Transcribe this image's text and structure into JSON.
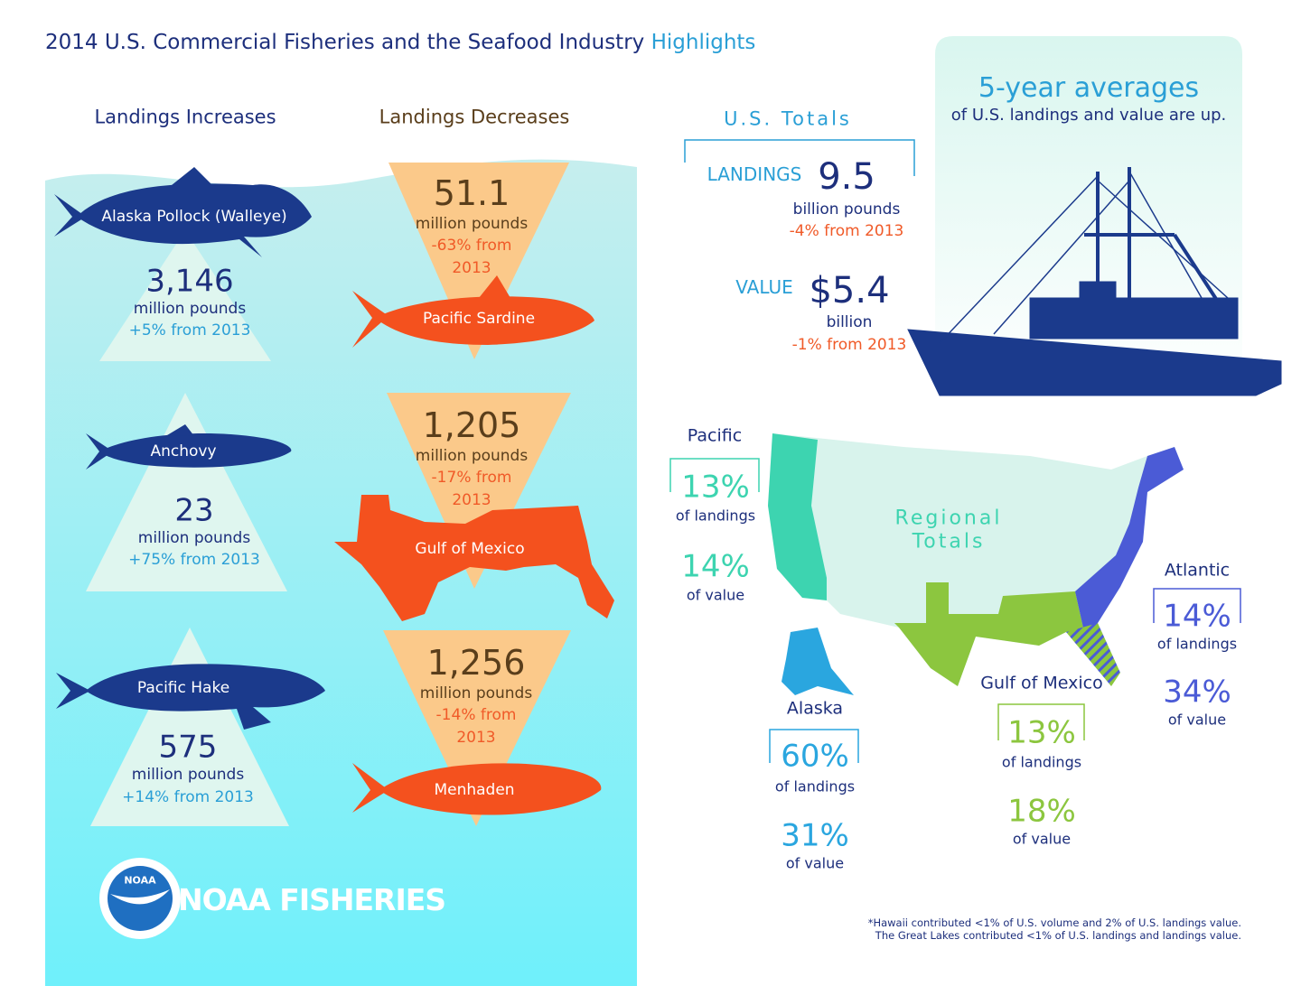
{
  "title": {
    "main": "2014 U.S. Commercial Fisheries and the Seafood Industry",
    "highlight": "Highlights"
  },
  "increases": {
    "heading": "Landings Increases",
    "items": [
      {
        "species": "Alaska  Pollock (Walleye)",
        "amount": "3,146",
        "unit": "million pounds",
        "change": "+5% from 2013"
      },
      {
        "species": "Anchovy",
        "amount": "23",
        "unit": "million pounds",
        "change": "+75% from 2013"
      },
      {
        "species": "Pacific Hake",
        "amount": "575",
        "unit": "million pounds",
        "change": "+14% from 2013"
      }
    ]
  },
  "decreases": {
    "heading": "Landings Decreases",
    "items": [
      {
        "amount": "51.1",
        "unit": "million pounds",
        "change": "-63% from 2013",
        "species": "Pacific Sardine"
      },
      {
        "amount": "1,205",
        "unit": "million pounds",
        "change": "-17% from 2013",
        "species": "Gulf of Mexico"
      },
      {
        "amount": "1,256",
        "unit": "million pounds",
        "change": "-14% from 2013",
        "species": "Menhaden"
      }
    ]
  },
  "totals": {
    "heading": "U.S. Totals",
    "landings": {
      "label": "LANDINGS",
      "amount": "9.5",
      "unit": "billion pounds",
      "change": "-4% from 2013"
    },
    "value": {
      "label": "VALUE",
      "amount": "$5.4",
      "unit": "billion",
      "change": "-1% from 2013"
    }
  },
  "averages": {
    "heading": "5-year averages",
    "text": "of U.S. landings and value are up."
  },
  "regional": {
    "heading": "Regional Totals",
    "regions": [
      {
        "name": "Pacific",
        "landings": "13%",
        "landings_label": "of landings",
        "value": "14%",
        "value_label": "of value"
      },
      {
        "name": "Atlantic",
        "landings": "14%",
        "landings_label": "of landings",
        "value": "34%",
        "value_label": "of value"
      },
      {
        "name": "Alaska",
        "landings": "60%",
        "landings_label": "of landings",
        "value": "31%",
        "value_label": "of value"
      },
      {
        "name": "Gulf of Mexico",
        "landings": "13%",
        "landings_label": "of landings",
        "value": "18%",
        "value_label": "of value"
      }
    ]
  },
  "footnotes": [
    "*Hawaii contributed <1% of U.S. volume and 2% of U.S. landings value.",
    "The Great Lakes contributed <1% of U.S. landings and landings value."
  ],
  "logo": {
    "badge": "NOAA",
    "text": "NOAA FISHERIES"
  }
}
